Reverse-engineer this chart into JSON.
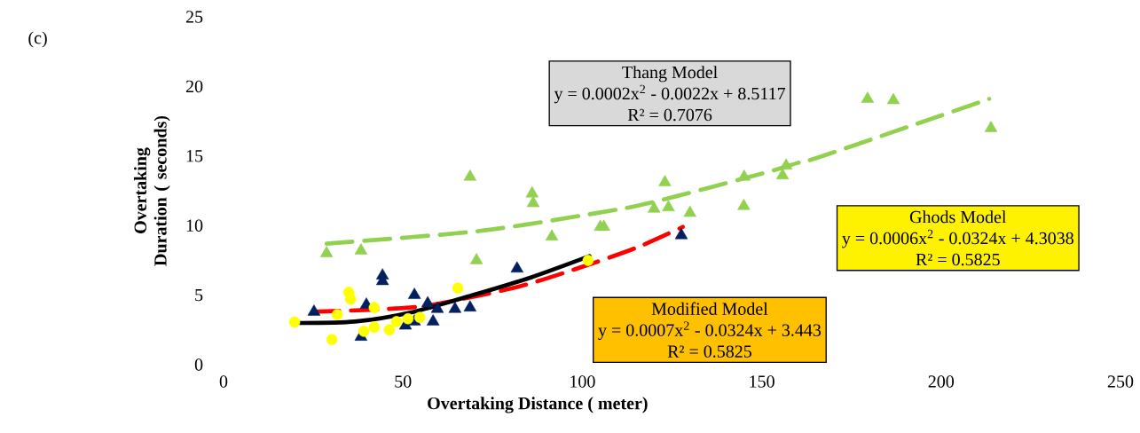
{
  "chart_data": {
    "type": "scatter",
    "xlabel": "Overtaking Distance ( meter)",
    "ylabel": "Overtaking Duration ( seconds)",
    "xlim": [
      0,
      250
    ],
    "ylim": [
      0,
      25
    ],
    "xticks": [
      0,
      50,
      100,
      150,
      200,
      250
    ],
    "yticks": [
      0,
      5,
      10,
      15,
      20,
      25
    ],
    "grid": false,
    "series": [
      {
        "color": "#92d050",
        "marker": "triangle",
        "x": [
          28.7,
          38.3,
          68.7,
          70.5,
          86,
          86.3,
          91.5,
          105,
          106,
          120,
          123,
          124,
          130,
          145,
          145.1,
          155.8,
          156.8,
          179.5,
          186.7,
          213.9
        ],
        "values": [
          8.0,
          8.2,
          13.5,
          7.5,
          12.3,
          11.6,
          9.2,
          9.9,
          9.9,
          11.2,
          13.1,
          11.3,
          10.9,
          11.4,
          13.5,
          13.6,
          14.3,
          19.1,
          19.0,
          17.0
        ]
      },
      {
        "color": "#002060",
        "marker": "triangle",
        "x": [
          25.2,
          44.3,
          44.3,
          39.8,
          38.3,
          53.2,
          50.7,
          53.2,
          56.9,
          58.4,
          59.6,
          64.5,
          68.7,
          81.8,
          127.6
        ],
        "values": [
          3.8,
          6.4,
          6.0,
          4.3,
          2.0,
          5.0,
          2.8,
          3.1,
          4.4,
          3.1,
          4.0,
          4.0,
          4.1,
          6.9,
          9.3
        ]
      },
      {
        "color": "#ffff00",
        "marker": "circle",
        "x": [
          19.8,
          30.2,
          34.9,
          35.4,
          31.7,
          39.1,
          42.0,
          42.0,
          46.2,
          48.2,
          51.4,
          54.7,
          65.3,
          101.6
        ],
        "values": [
          3.06,
          1.8,
          5.2,
          4.7,
          3.6,
          2.4,
          2.7,
          4.1,
          2.5,
          3.1,
          3.3,
          3.4,
          5.5,
          7.5
        ]
      },
      {
        "type": "line",
        "color": "#92d050",
        "line_style": "dashed",
        "marker": "none",
        "x": [
          28.7,
          71,
          104,
          120,
          151,
          160,
          167,
          213.4
        ],
        "values": [
          8.7,
          9.6,
          10.9,
          11.7,
          13.8,
          14.5,
          15.0,
          19.1
        ]
      },
      {
        "type": "line",
        "color": "#ff0000",
        "line_style": "dashed",
        "marker": "none",
        "x": [
          25,
          52,
          68,
          83.6,
          99,
          115,
          128
        ],
        "values": [
          3.8,
          4.1,
          4.8,
          5.7,
          6.95,
          8.4,
          9.9
        ]
      },
      {
        "type": "line",
        "color": "#000000",
        "line_style": "solid",
        "marker": "none",
        "x": [
          19.8,
          36.6,
          53,
          69.5,
          86,
          102
        ],
        "values": [
          3.0,
          3.1,
          3.8,
          5.0,
          6.3,
          7.8
        ]
      }
    ],
    "annotations": [
      "(c)",
      "Thang Model",
      "y = 0.0002x$^{2}$ - 0.0022x + 8.5117",
      "R² = 0.7076",
      "Ghods Model",
      "y = 0.0006x$^{2}$ - 0.0324x + 4.3038",
      "R² = 0.5825",
      "Modified Model",
      "y = 0.0007x$^{2}$ - 0.0324x + 3.443",
      "R² = 0.5825"
    ]
  }
}
